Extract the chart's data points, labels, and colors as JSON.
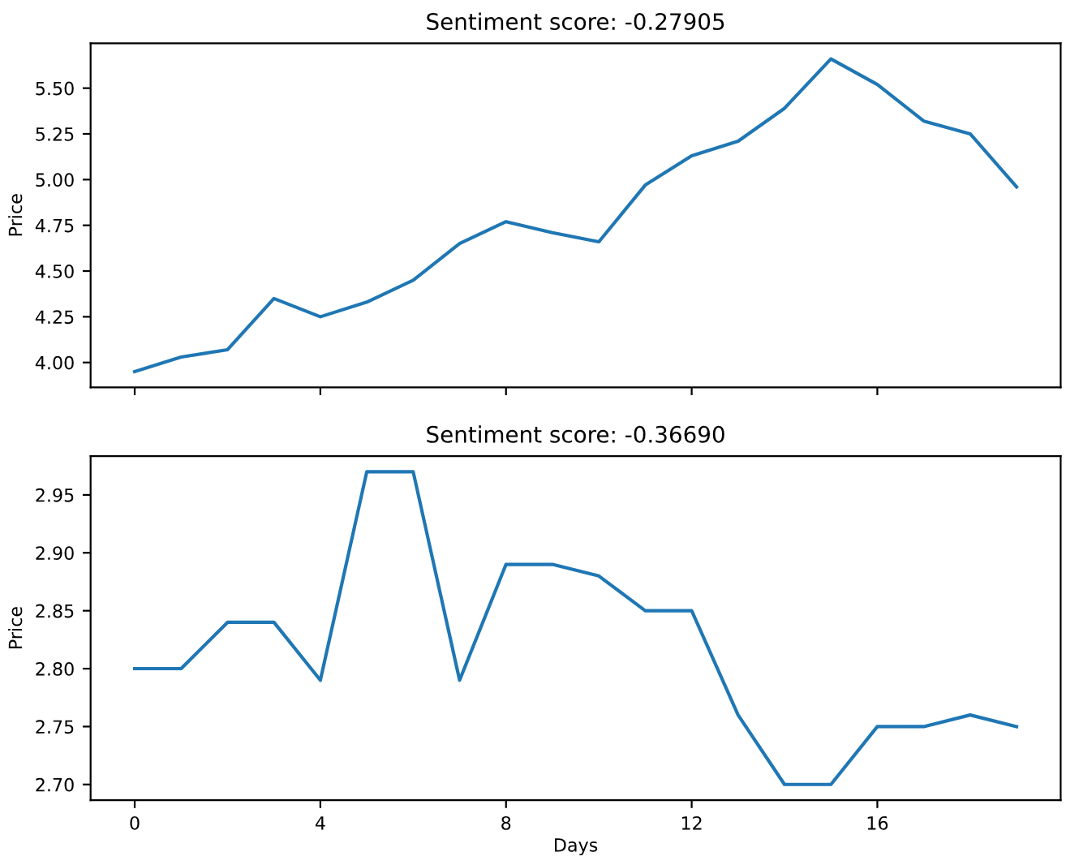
{
  "chart_data": [
    {
      "type": "line",
      "title": "Sentiment score: -0.27905",
      "ylabel": "Price",
      "x": [
        0,
        1,
        2,
        3,
        4,
        5,
        6,
        7,
        8,
        9,
        10,
        11,
        12,
        13,
        14,
        15,
        16,
        17,
        18,
        19
      ],
      "series": [
        {
          "color": "#1f77b4",
          "values": [
            3.95,
            4.03,
            4.07,
            4.35,
            4.25,
            4.33,
            4.45,
            4.65,
            4.77,
            4.71,
            4.66,
            4.97,
            5.13,
            5.21,
            5.39,
            5.66,
            5.52,
            5.32,
            5.25,
            4.96
          ]
        }
      ],
      "xlim": [
        -0.95,
        19.95
      ],
      "xticks": [
        0,
        4,
        8,
        12,
        16
      ],
      "ylim": [
        3.8645,
        5.7455
      ],
      "yticks": [
        {
          "value": 4.0,
          "label": "4.00"
        },
        {
          "value": 4.25,
          "label": "4.25"
        },
        {
          "value": 4.5,
          "label": "4.50"
        },
        {
          "value": 4.75,
          "label": "4.75"
        },
        {
          "value": 5.0,
          "label": "5.00"
        },
        {
          "value": 5.25,
          "label": "5.25"
        },
        {
          "value": 5.5,
          "label": "5.50"
        }
      ],
      "tick_labels": "y"
    },
    {
      "type": "line",
      "title": "Sentiment score: -0.36690",
      "xlabel": "Days",
      "ylabel": "Price",
      "x": [
        0,
        1,
        2,
        3,
        4,
        5,
        6,
        7,
        8,
        9,
        10,
        11,
        12,
        13,
        14,
        15,
        16,
        17,
        18,
        19
      ],
      "series": [
        {
          "color": "#1f77b4",
          "values": [
            2.8,
            2.8,
            2.84,
            2.84,
            2.79,
            2.97,
            2.97,
            2.79,
            2.89,
            2.89,
            2.88,
            2.85,
            2.85,
            2.76,
            2.7,
            2.7,
            2.75,
            2.75,
            2.76,
            2.75
          ]
        }
      ],
      "xlim": [
        -0.95,
        19.95
      ],
      "xticks": [
        0,
        4,
        8,
        12,
        16
      ],
      "ylim": [
        2.6865,
        2.9835
      ],
      "yticks": [
        {
          "value": 2.7,
          "label": "2.70"
        },
        {
          "value": 2.75,
          "label": "2.75"
        },
        {
          "value": 2.8,
          "label": "2.80"
        },
        {
          "value": 2.85,
          "label": "2.85"
        },
        {
          "value": 2.9,
          "label": "2.90"
        },
        {
          "value": 2.95,
          "label": "2.95"
        }
      ]
    }
  ]
}
